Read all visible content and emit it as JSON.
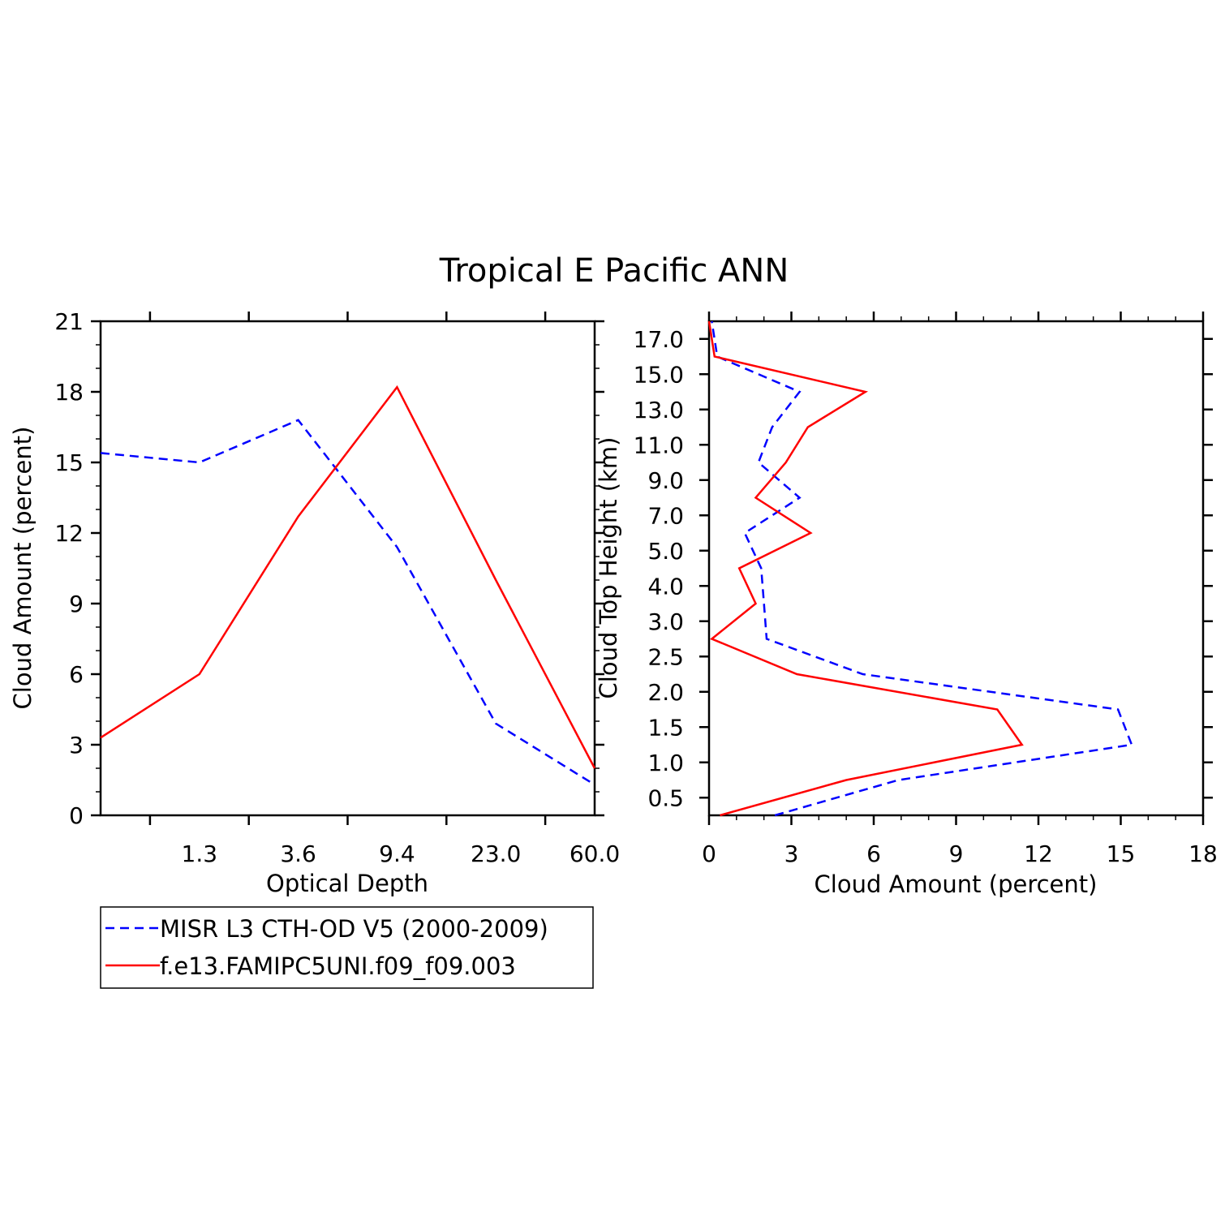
{
  "title": "Tropical E Pacific ANN",
  "colors": {
    "misr": "#0000ff",
    "model": "#ff0000",
    "axis": "#000000"
  },
  "legend": {
    "placement": "below-left-panel",
    "entries": [
      {
        "label": "MISR L3 CTH-OD V5 (2000-2009)",
        "color": "#0000ff",
        "style": "dashed"
      },
      {
        "label": "f.e13.FAMIPC5UNI.f09_f09.003",
        "color": "#ff0000",
        "style": "solid"
      }
    ]
  },
  "chart_data": [
    {
      "type": "line",
      "xlabel": "Optical Depth",
      "ylabel": "Cloud Amount (percent)",
      "ylim": [
        0,
        21
      ],
      "x_tick_labels": [
        "1.3",
        "3.6",
        "9.4",
        "23.0",
        "60.0"
      ],
      "y_tick_labels": [
        "0",
        "3",
        "6",
        "9",
        "12",
        "15",
        "18",
        "21"
      ],
      "series": [
        {
          "name": "MISR L3 CTH-OD V5 (2000-2009)",
          "color": "#0000ff",
          "dash": true,
          "values": [
            15.4,
            15.0,
            16.8,
            11.4,
            3.9,
            1.3
          ]
        },
        {
          "name": "f.e13.FAMIPC5UNI.f09_f09.003",
          "color": "#ff0000",
          "dash": false,
          "values": [
            3.3,
            6.0,
            12.7,
            18.2,
            10.0,
            2.0
          ]
        }
      ]
    },
    {
      "type": "line",
      "orientation": "horizontal-profile",
      "xlabel": "Cloud Amount (percent)",
      "ylabel": "Cloud Top Height (km)",
      "xlim": [
        0,
        18
      ],
      "x_tick_labels": [
        "0",
        "3",
        "6",
        "9",
        "12",
        "15",
        "18"
      ],
      "y_tick_labels": [
        "0.5",
        "1.0",
        "1.5",
        "2.0",
        "2.5",
        "3.0",
        "4.0",
        "5.0",
        "7.0",
        "9.0",
        "11.0",
        "13.0",
        "15.0",
        "17.0"
      ],
      "series": [
        {
          "name": "MISR L3 CTH-OD V5 (2000-2009)",
          "color": "#0000ff",
          "dash": true,
          "x": [
            2.4,
            6.9,
            15.4,
            14.9,
            5.6,
            2.1,
            2.0,
            1.9,
            1.3,
            3.3,
            1.8,
            2.3,
            3.3,
            0.3,
            0.1
          ]
        },
        {
          "name": "f.e13.FAMIPC5UNI.f09_f09.003",
          "color": "#ff0000",
          "dash": false,
          "x": [
            0.4,
            5.0,
            11.4,
            10.5,
            3.2,
            0.1,
            1.7,
            1.1,
            3.7,
            1.7,
            2.8,
            3.6,
            5.7,
            0.2,
            0.0
          ]
        }
      ]
    }
  ]
}
